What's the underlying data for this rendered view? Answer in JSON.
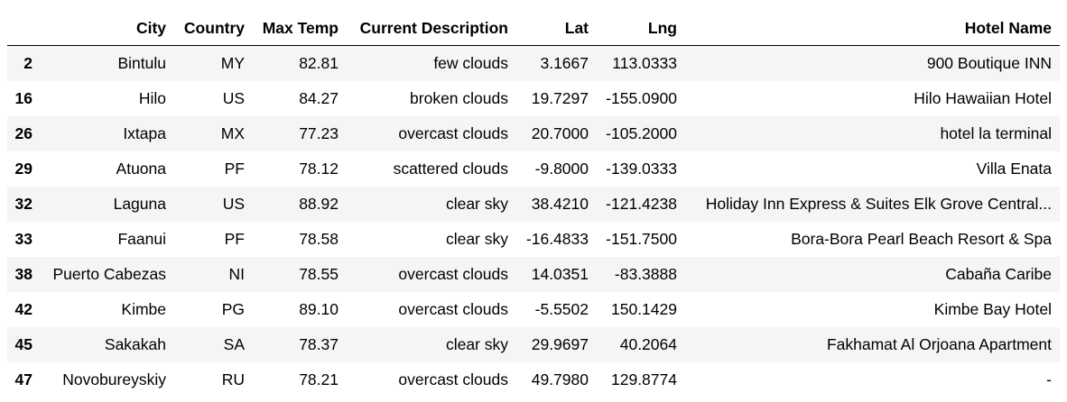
{
  "table": {
    "columns": [
      "",
      "City",
      "Country",
      "Max Temp",
      "Current Description",
      "Lat",
      "Lng",
      "Hotel Name"
    ],
    "rows": [
      {
        "index": "2",
        "city": "Bintulu",
        "country": "MY",
        "max_temp": "82.81",
        "description": "few clouds",
        "lat": "3.1667",
        "lng": "113.0333",
        "hotel": "900 Boutique INN"
      },
      {
        "index": "16",
        "city": "Hilo",
        "country": "US",
        "max_temp": "84.27",
        "description": "broken clouds",
        "lat": "19.7297",
        "lng": "-155.0900",
        "hotel": "Hilo Hawaiian Hotel"
      },
      {
        "index": "26",
        "city": "Ixtapa",
        "country": "MX",
        "max_temp": "77.23",
        "description": "overcast clouds",
        "lat": "20.7000",
        "lng": "-105.2000",
        "hotel": "hotel la terminal"
      },
      {
        "index": "29",
        "city": "Atuona",
        "country": "PF",
        "max_temp": "78.12",
        "description": "scattered clouds",
        "lat": "-9.8000",
        "lng": "-139.0333",
        "hotel": "Villa Enata"
      },
      {
        "index": "32",
        "city": "Laguna",
        "country": "US",
        "max_temp": "88.92",
        "description": "clear sky",
        "lat": "38.4210",
        "lng": "-121.4238",
        "hotel": "Holiday Inn Express & Suites Elk Grove Central..."
      },
      {
        "index": "33",
        "city": "Faanui",
        "country": "PF",
        "max_temp": "78.58",
        "description": "clear sky",
        "lat": "-16.4833",
        "lng": "-151.7500",
        "hotel": "Bora-Bora Pearl Beach Resort & Spa"
      },
      {
        "index": "38",
        "city": "Puerto Cabezas",
        "country": "NI",
        "max_temp": "78.55",
        "description": "overcast clouds",
        "lat": "14.0351",
        "lng": "-83.3888",
        "hotel": "Cabaña Caribe"
      },
      {
        "index": "42",
        "city": "Kimbe",
        "country": "PG",
        "max_temp": "89.10",
        "description": "overcast clouds",
        "lat": "-5.5502",
        "lng": "150.1429",
        "hotel": "Kimbe Bay Hotel"
      },
      {
        "index": "45",
        "city": "Sakakah",
        "country": "SA",
        "max_temp": "78.37",
        "description": "clear sky",
        "lat": "29.9697",
        "lng": "40.2064",
        "hotel": "Fakhamat Al Orjoana Apartment"
      },
      {
        "index": "47",
        "city": "Novobureyskiy",
        "country": "RU",
        "max_temp": "78.21",
        "description": "overcast clouds",
        "lat": "49.7980",
        "lng": "129.8774",
        "hotel": "-"
      }
    ]
  }
}
